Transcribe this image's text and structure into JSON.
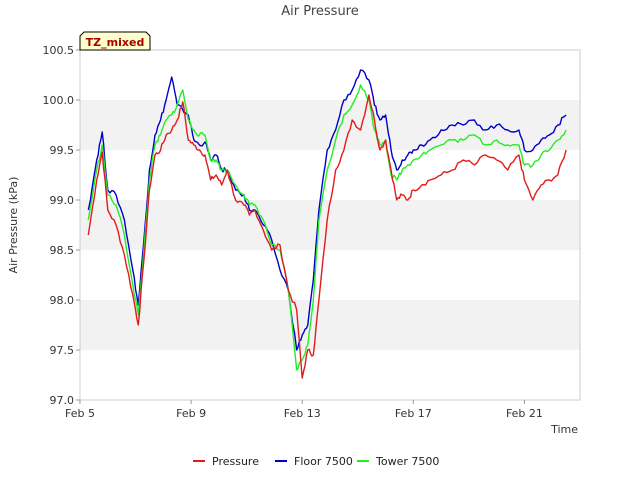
{
  "chart_data": {
    "type": "line",
    "title": "Air Pressure",
    "xlabel": "Time",
    "ylabel": "Air Pressure (kPa)",
    "ylim": [
      97.0,
      100.5
    ],
    "xlim_days": [
      5.0,
      23.0
    ],
    "yticks": [
      97.0,
      97.5,
      98.0,
      98.5,
      99.0,
      99.5,
      100.0,
      100.5
    ],
    "xticks": [
      {
        "label": "Feb 5",
        "day": 5
      },
      {
        "label": "Feb 9",
        "day": 9
      },
      {
        "label": "Feb 13",
        "day": 13
      },
      {
        "label": "Feb 17",
        "day": 17
      },
      {
        "label": "Feb 21",
        "day": 21
      }
    ],
    "annotation": "TZ_mixed",
    "x_days": [
      5.3,
      5.6,
      5.8,
      6.0,
      6.3,
      6.6,
      6.9,
      7.1,
      7.3,
      7.5,
      7.7,
      7.9,
      8.1,
      8.3,
      8.5,
      8.7,
      8.9,
      9.1,
      9.3,
      9.5,
      9.7,
      9.9,
      10.1,
      10.3,
      10.6,
      10.9,
      11.1,
      11.3,
      11.6,
      11.9,
      12.2,
      12.5,
      12.8,
      13.0,
      13.2,
      13.4,
      13.6,
      13.9,
      14.2,
      14.5,
      14.8,
      15.1,
      15.4,
      15.6,
      15.8,
      16.0,
      16.2,
      16.4,
      16.6,
      16.8,
      17.0,
      17.3,
      17.6,
      18.0,
      18.4,
      18.8,
      19.2,
      19.6,
      20.0,
      20.4,
      20.8,
      21.0,
      21.3,
      21.6,
      21.9,
      22.2,
      22.5
    ],
    "series": [
      {
        "name": "Pressure",
        "color": "#e31a1c",
        "values": [
          98.65,
          99.2,
          99.48,
          98.9,
          98.75,
          98.45,
          98.05,
          97.75,
          98.4,
          99.1,
          99.45,
          99.5,
          99.65,
          99.7,
          99.8,
          99.98,
          99.6,
          99.55,
          99.5,
          99.45,
          99.2,
          99.25,
          99.15,
          99.3,
          99.0,
          98.95,
          98.85,
          98.9,
          98.7,
          98.5,
          98.55,
          98.1,
          97.9,
          97.22,
          97.5,
          97.45,
          98.0,
          98.8,
          99.3,
          99.5,
          99.8,
          99.7,
          100.05,
          99.8,
          99.5,
          99.6,
          99.3,
          99.0,
          99.05,
          99.0,
          99.1,
          99.15,
          99.2,
          99.25,
          99.3,
          99.4,
          99.35,
          99.45,
          99.4,
          99.3,
          99.45,
          99.2,
          99.0,
          99.15,
          99.2,
          99.25,
          99.5
        ]
      },
      {
        "name": "Floor 7500",
        "color": "#0000cc",
        "values": [
          98.9,
          99.4,
          99.68,
          99.1,
          99.05,
          98.8,
          98.3,
          97.95,
          98.6,
          99.3,
          99.65,
          99.8,
          100.0,
          100.23,
          99.95,
          99.9,
          99.85,
          99.6,
          99.55,
          99.58,
          99.4,
          99.45,
          99.3,
          99.3,
          99.1,
          99.05,
          98.9,
          98.9,
          98.75,
          98.6,
          98.3,
          98.1,
          97.5,
          97.65,
          97.75,
          98.2,
          98.9,
          99.5,
          99.7,
          100.0,
          100.1,
          100.3,
          100.2,
          99.95,
          99.8,
          99.85,
          99.5,
          99.3,
          99.4,
          99.45,
          99.5,
          99.55,
          99.6,
          99.7,
          99.75,
          99.75,
          99.8,
          99.7,
          99.75,
          99.7,
          99.7,
          99.5,
          99.5,
          99.6,
          99.65,
          99.75,
          99.85
        ]
      },
      {
        "name": "Tower 7500",
        "color": "#22ee22",
        "values": [
          98.8,
          99.3,
          99.55,
          99.05,
          98.95,
          98.65,
          98.15,
          97.85,
          98.5,
          99.2,
          99.55,
          99.65,
          99.8,
          99.85,
          99.95,
          100.1,
          99.8,
          99.7,
          99.65,
          99.65,
          99.4,
          99.4,
          99.3,
          99.3,
          99.15,
          99.05,
          98.95,
          98.95,
          98.8,
          98.55,
          98.5,
          98.1,
          97.3,
          97.4,
          97.55,
          98.0,
          98.8,
          99.3,
          99.6,
          99.85,
          99.95,
          100.15,
          100.0,
          99.7,
          99.55,
          99.6,
          99.25,
          99.2,
          99.3,
          99.35,
          99.4,
          99.45,
          99.5,
          99.55,
          99.6,
          99.6,
          99.65,
          99.55,
          99.6,
          99.55,
          99.55,
          99.35,
          99.35,
          99.45,
          99.5,
          99.6,
          99.7
        ]
      }
    ]
  }
}
